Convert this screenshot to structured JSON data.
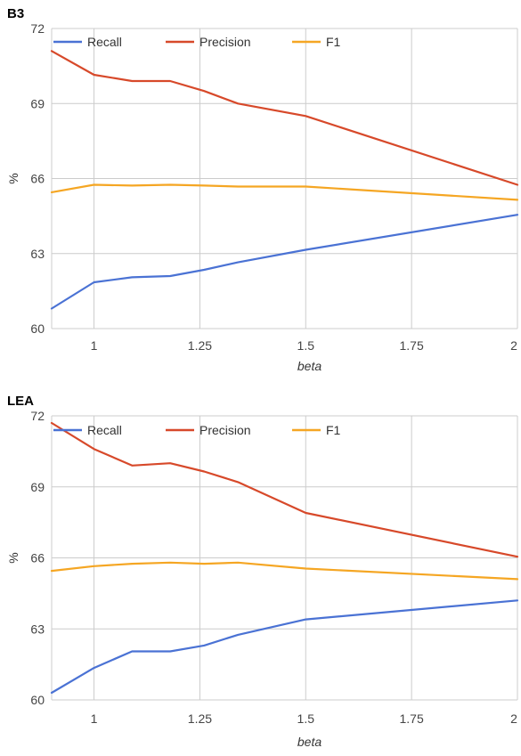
{
  "chart_data": [
    {
      "type": "line",
      "title": "B3",
      "xlabel": "beta",
      "ylabel": "%",
      "xlim": [
        0.9,
        2
      ],
      "ylim": [
        60,
        72
      ],
      "xticks": [
        1,
        1.25,
        1.5,
        1.75,
        2
      ],
      "xtick_labels": [
        "1",
        "1.25",
        "1.5",
        "1.75",
        "2"
      ],
      "yticks": [
        60,
        63,
        66,
        69,
        72
      ],
      "ytick_labels": [
        "60",
        "63",
        "66",
        "69",
        "72"
      ],
      "grid": true,
      "legend_position": "top",
      "series": [
        {
          "name": "Recall",
          "color": "#4a72d4",
          "x": [
            0.9,
            1.0,
            1.09,
            1.18,
            1.26,
            1.34,
            1.5,
            2.0
          ],
          "y": [
            60.8,
            61.85,
            62.05,
            62.1,
            62.35,
            62.65,
            63.15,
            64.55
          ]
        },
        {
          "name": "Precision",
          "color": "#d7492a",
          "x": [
            0.9,
            1.0,
            1.09,
            1.18,
            1.26,
            1.34,
            1.5,
            2.0
          ],
          "y": [
            71.1,
            70.15,
            69.9,
            69.9,
            69.5,
            69.0,
            68.5,
            65.75
          ]
        },
        {
          "name": "F1",
          "color": "#f5a623",
          "x": [
            0.9,
            1.0,
            1.09,
            1.18,
            1.26,
            1.34,
            1.5,
            2.0
          ],
          "y": [
            65.45,
            65.75,
            65.72,
            65.75,
            65.72,
            65.68,
            65.68,
            65.15
          ]
        }
      ]
    },
    {
      "type": "line",
      "title": "LEA",
      "xlabel": "beta",
      "ylabel": "%",
      "xlim": [
        0.9,
        2
      ],
      "ylim": [
        60,
        72
      ],
      "xticks": [
        1,
        1.25,
        1.5,
        1.75,
        2
      ],
      "xtick_labels": [
        "1",
        "1.25",
        "1.5",
        "1.75",
        "2"
      ],
      "yticks": [
        60,
        63,
        66,
        69,
        72
      ],
      "ytick_labels": [
        "60",
        "63",
        "66",
        "69",
        "72"
      ],
      "grid": true,
      "legend_position": "top",
      "series": [
        {
          "name": "Recall",
          "color": "#4a72d4",
          "x": [
            0.9,
            1.0,
            1.09,
            1.18,
            1.26,
            1.34,
            1.5,
            2.0
          ],
          "y": [
            60.3,
            61.35,
            62.05,
            62.05,
            62.3,
            62.75,
            63.4,
            64.2
          ]
        },
        {
          "name": "Precision",
          "color": "#d7492a",
          "x": [
            0.9,
            1.0,
            1.09,
            1.18,
            1.26,
            1.34,
            1.5,
            2.0
          ],
          "y": [
            71.7,
            70.6,
            69.9,
            70.0,
            69.65,
            69.2,
            67.9,
            66.05
          ]
        },
        {
          "name": "F1",
          "color": "#f5a623",
          "x": [
            0.9,
            1.0,
            1.09,
            1.18,
            1.26,
            1.34,
            1.5,
            2.0
          ],
          "y": [
            65.45,
            65.65,
            65.75,
            65.8,
            65.75,
            65.8,
            65.55,
            65.1
          ]
        }
      ]
    }
  ]
}
